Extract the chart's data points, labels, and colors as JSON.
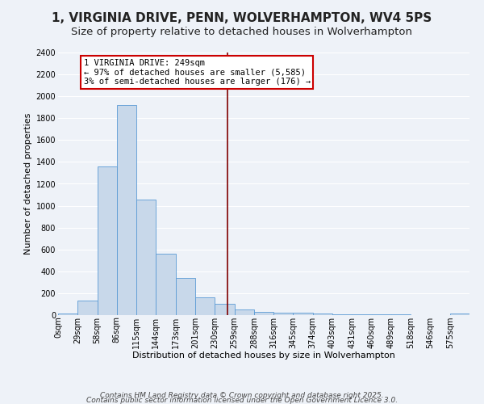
{
  "title": "1, VIRGINIA DRIVE, PENN, WOLVERHAMPTON, WV4 5PS",
  "subtitle": "Size of property relative to detached houses in Wolverhampton",
  "xlabel": "Distribution of detached houses by size in Wolverhampton",
  "ylabel": "Number of detached properties",
  "bin_labels": [
    "0sqm",
    "29sqm",
    "58sqm",
    "86sqm",
    "115sqm",
    "144sqm",
    "173sqm",
    "201sqm",
    "230sqm",
    "259sqm",
    "288sqm",
    "316sqm",
    "345sqm",
    "374sqm",
    "403sqm",
    "431sqm",
    "460sqm",
    "489sqm",
    "518sqm",
    "546sqm",
    "575sqm"
  ],
  "bin_values": [
    13,
    130,
    1360,
    1920,
    1055,
    560,
    340,
    165,
    105,
    55,
    32,
    25,
    20,
    15,
    10,
    5,
    10,
    5,
    3,
    3,
    18
  ],
  "bar_color": "#c8d8ea",
  "bar_edge_color": "#5b9bd5",
  "vline_color": "#800000",
  "annotation_title": "1 VIRGINIA DRIVE: 249sqm",
  "annotation_line1": "← 97% of detached houses are smaller (5,585)",
  "annotation_line2": "3% of semi-detached houses are larger (176) →",
  "annotation_box_color": "#ffffff",
  "annotation_border_color": "#cc0000",
  "bg_color": "#eef2f8",
  "grid_color": "#ffffff",
  "ylim": [
    0,
    2400
  ],
  "yticks": [
    0,
    200,
    400,
    600,
    800,
    1000,
    1200,
    1400,
    1600,
    1800,
    2000,
    2200,
    2400
  ],
  "footer_line1": "Contains HM Land Registry data © Crown copyright and database right 2025.",
  "footer_line2": "Contains public sector information licensed under the Open Government Licence 3.0.",
  "title_fontsize": 11,
  "subtitle_fontsize": 9.5,
  "axis_label_fontsize": 8,
  "tick_fontsize": 7,
  "annotation_fontsize": 7.5,
  "footer_fontsize": 6.5
}
